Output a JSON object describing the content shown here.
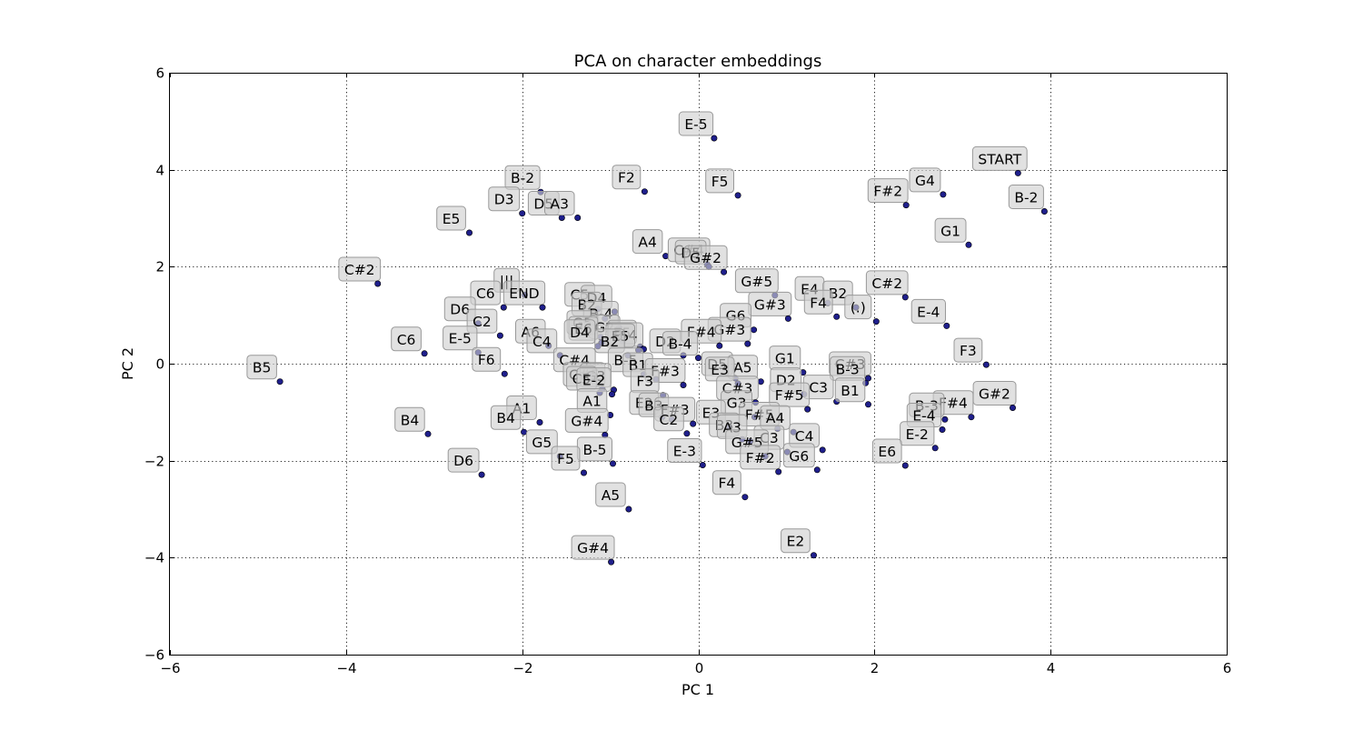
{
  "chart_data": {
    "type": "scatter",
    "title": "PCA on character embeddings",
    "xlabel": "PC 1",
    "ylabel": "PC 2",
    "xlim": [
      -6,
      6
    ],
    "ylim": [
      -6,
      6
    ],
    "xticks": [
      -6,
      -4,
      -2,
      0,
      2,
      4,
      6
    ],
    "yticks": [
      -6,
      -4,
      -2,
      0,
      2,
      4,
      6
    ],
    "xtick_labels": [
      "−6",
      "−4",
      "−2",
      "0",
      "2",
      "4",
      "6"
    ],
    "ytick_labels": [
      "−6",
      "−4",
      "−2",
      "0",
      "2",
      "4",
      "6"
    ],
    "grid": true,
    "grid_style": "dotted",
    "marker_color": "#1f1f8c",
    "label_box_color": "#cfcfcf",
    "points": [
      {
        "label": "E-5",
        "x": 0.18,
        "y": 4.65
      },
      {
        "label": "START",
        "x": 3.63,
        "y": 3.93
      },
      {
        "label": "B-2",
        "x": -1.79,
        "y": 3.54
      },
      {
        "label": "F2",
        "x": -0.61,
        "y": 3.55
      },
      {
        "label": "F5",
        "x": 0.45,
        "y": 3.47
      },
      {
        "label": "G4",
        "x": 2.78,
        "y": 3.49
      },
      {
        "label": "F#2",
        "x": 2.36,
        "y": 3.27
      },
      {
        "label": "B-2",
        "x": 3.93,
        "y": 3.14
      },
      {
        "label": "D3",
        "x": -2.0,
        "y": 3.1
      },
      {
        "label": "D5",
        "x": -1.55,
        "y": 3.01
      },
      {
        "label": "A3",
        "x": -1.37,
        "y": 3.01
      },
      {
        "label": "E5",
        "x": -2.6,
        "y": 2.7
      },
      {
        "label": "G1",
        "x": 3.07,
        "y": 2.45
      },
      {
        "label": "A4",
        "x": -0.37,
        "y": 2.22
      },
      {
        "label": "C#4",
        "x": 0.1,
        "y": 2.05
      },
      {
        "label": "D5",
        "x": 0.12,
        "y": 2.0
      },
      {
        "label": "G#2",
        "x": 0.29,
        "y": 1.89
      },
      {
        "label": "C#2",
        "x": -3.64,
        "y": 1.65
      },
      {
        "label": "|||",
        "x": -1.97,
        "y": 1.42
      },
      {
        "label": "G#5",
        "x": 0.87,
        "y": 1.41
      },
      {
        "label": "C#2",
        "x": 2.35,
        "y": 1.37
      },
      {
        "label": "E4",
        "x": 1.47,
        "y": 1.25
      },
      {
        "label": "B2",
        "x": 1.79,
        "y": 1.16
      },
      {
        "label": "F4",
        "x": 1.57,
        "y": 0.97
      },
      {
        "label": "C6",
        "x": -2.21,
        "y": 1.16
      },
      {
        "label": "END",
        "x": -1.77,
        "y": 1.16
      },
      {
        "label": "C5",
        "x": -1.14,
        "y": 1.13
      },
      {
        "label": "D4",
        "x": -0.95,
        "y": 1.07
      },
      {
        "label": "B2",
        "x": -1.06,
        "y": 0.93
      },
      {
        "label": "G#3",
        "x": 1.02,
        "y": 0.93
      },
      {
        "label": "(.)",
        "x": 2.02,
        "y": 0.87
      },
      {
        "label": "D6",
        "x": -2.5,
        "y": 0.83
      },
      {
        "label": "E-4",
        "x": 2.82,
        "y": 0.78
      },
      {
        "label": "B-4",
        "x": -0.9,
        "y": 0.74
      },
      {
        "label": "G6",
        "x": 0.63,
        "y": 0.7
      },
      {
        "label": "C2",
        "x": -2.25,
        "y": 0.58
      },
      {
        "label": "G5",
        "x": -1.11,
        "y": 0.55
      },
      {
        "label": "G2",
        "x": -0.86,
        "y": 0.46
      },
      {
        "label": "E6",
        "x": -1.1,
        "y": 0.43
      },
      {
        "label": "G#3",
        "x": 0.56,
        "y": 0.41
      },
      {
        "label": "F#4",
        "x": 0.24,
        "y": 0.37
      },
      {
        "label": "E5",
        "x": -0.66,
        "y": 0.35
      },
      {
        "label": "A6",
        "x": -1.7,
        "y": 0.37
      },
      {
        "label": "D4",
        "x": -1.14,
        "y": 0.36
      },
      {
        "label": "B-4",
        "x": -0.62,
        "y": 0.3
      },
      {
        "label": "E5",
        "x": -0.68,
        "y": 0.28
      },
      {
        "label": "C4",
        "x": -1.57,
        "y": 0.17
      },
      {
        "label": "C6",
        "x": -3.11,
        "y": 0.21
      },
      {
        "label": "E-5",
        "x": -2.5,
        "y": 0.23
      },
      {
        "label": "D2",
        "x": -0.17,
        "y": 0.17
      },
      {
        "label": "B-4",
        "x": 0.0,
        "y": 0.12
      },
      {
        "label": "B2",
        "x": -0.8,
        "y": 0.17
      },
      {
        "label": "F3",
        "x": 3.27,
        "y": -0.02
      },
      {
        "label": "F6",
        "x": -2.2,
        "y": -0.21
      },
      {
        "label": "B5",
        "x": -4.75,
        "y": -0.37
      },
      {
        "label": "B-5",
        "x": -0.62,
        "y": -0.22
      },
      {
        "label": "C#4",
        "x": -1.2,
        "y": -0.22
      },
      {
        "label": "G1",
        "x": 1.19,
        "y": -0.18
      },
      {
        "label": "C#3",
        "x": 1.93,
        "y": -0.3
      },
      {
        "label": "B-3",
        "x": 1.9,
        "y": -0.4
      },
      {
        "label": "B1",
        "x": -0.48,
        "y": -0.32
      },
      {
        "label": "F#3",
        "x": -0.17,
        "y": -0.44
      },
      {
        "label": "D5",
        "x": 0.42,
        "y": -0.3
      },
      {
        "label": "A5",
        "x": 0.71,
        "y": -0.37
      },
      {
        "label": "E3",
        "x": 0.45,
        "y": -0.41
      },
      {
        "label": "C#5",
        "x": -1.09,
        "y": -0.52
      },
      {
        "label": "G3",
        "x": -0.96,
        "y": -0.54
      },
      {
        "label": "F3",
        "x": -0.4,
        "y": -0.65
      },
      {
        "label": "D2",
        "x": 1.2,
        "y": -0.63
      },
      {
        "label": "C5",
        "x": -1.12,
        "y": -0.6
      },
      {
        "label": "E-2",
        "x": -0.98,
        "y": -0.63
      },
      {
        "label": "C#3",
        "x": 0.65,
        "y": -0.8
      },
      {
        "label": "C3",
        "x": 1.57,
        "y": -0.78
      },
      {
        "label": "B1",
        "x": 1.93,
        "y": -0.84
      },
      {
        "label": "F#5",
        "x": 1.24,
        "y": -0.94
      },
      {
        "label": "A1",
        "x": -1.0,
        "y": -1.06
      },
      {
        "label": "E2",
        "x": -0.41,
        "y": -1.1
      },
      {
        "label": "G3",
        "x": 0.64,
        "y": -1.1
      },
      {
        "label": "G#2",
        "x": 3.57,
        "y": -0.91
      },
      {
        "label": "F#4",
        "x": 3.1,
        "y": -1.1
      },
      {
        "label": "B-3",
        "x": 2.8,
        "y": -1.15
      },
      {
        "label": "B3",
        "x": -0.3,
        "y": -1.15
      },
      {
        "label": "F#3",
        "x": -0.06,
        "y": -1.24
      },
      {
        "label": "E-4",
        "x": 2.77,
        "y": -1.36
      },
      {
        "label": "A1",
        "x": -1.8,
        "y": -1.21
      },
      {
        "label": "E3",
        "x": 0.35,
        "y": -1.3
      },
      {
        "label": "C2",
        "x": -0.13,
        "y": -1.44
      },
      {
        "label": "F#5",
        "x": 0.9,
        "y": -1.34
      },
      {
        "label": "A4",
        "x": 1.08,
        "y": -1.41
      },
      {
        "label": "B4",
        "x": -3.07,
        "y": -1.45
      },
      {
        "label": "B4",
        "x": -1.98,
        "y": -1.41
      },
      {
        "label": "G#4",
        "x": -1.06,
        "y": -1.47
      },
      {
        "label": "B3",
        "x": 0.5,
        "y": -1.56
      },
      {
        "label": "A3",
        "x": 0.59,
        "y": -1.6
      },
      {
        "label": "C4",
        "x": 1.41,
        "y": -1.78
      },
      {
        "label": "C3",
        "x": 1.01,
        "y": -1.82
      },
      {
        "label": "E-2",
        "x": 2.69,
        "y": -1.74
      },
      {
        "label": "G5",
        "x": -1.57,
        "y": -1.91
      },
      {
        "label": "G#5",
        "x": 0.76,
        "y": -1.91
      },
      {
        "label": "B-5",
        "x": -0.97,
        "y": -2.06
      },
      {
        "label": "E-3",
        "x": 0.05,
        "y": -2.09
      },
      {
        "label": "E6",
        "x": 2.35,
        "y": -2.1
      },
      {
        "label": "F5",
        "x": -1.3,
        "y": -2.25
      },
      {
        "label": "F#2",
        "x": 0.91,
        "y": -2.23
      },
      {
        "label": "G6",
        "x": 1.35,
        "y": -2.19
      },
      {
        "label": "D6",
        "x": -2.46,
        "y": -2.29
      },
      {
        "label": "F4",
        "x": 0.53,
        "y": -2.75
      },
      {
        "label": "A5",
        "x": -0.79,
        "y": -3.0
      },
      {
        "label": "E2",
        "x": 1.31,
        "y": -3.95
      },
      {
        "label": "G#4",
        "x": -0.99,
        "y": -4.09
      }
    ]
  }
}
